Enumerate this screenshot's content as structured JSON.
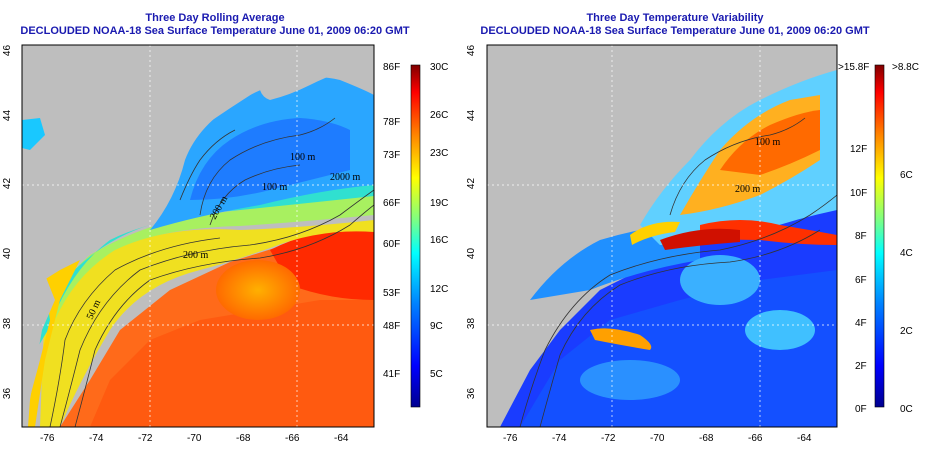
{
  "colors": {
    "title": "#1a1ab0",
    "land": "#bebebe",
    "colormap": [
      "#00008f",
      "#0000ff",
      "#0080ff",
      "#00ffff",
      "#80ff80",
      "#ffff00",
      "#ff8000",
      "#ff0000",
      "#800000"
    ]
  },
  "left_panel": {
    "title_line1": "Three Day Rolling Average",
    "title_line2": "DECLOUDED NOAA-18 Sea Surface Temperature June 01, 2009 06:20 GMT",
    "x_ticks": [
      "-76",
      "-74",
      "-72",
      "-70",
      "-68",
      "-66",
      "-64"
    ],
    "y_ticks": [
      "36",
      "38",
      "40",
      "42",
      "44",
      "46"
    ],
    "contour_labels": [
      "50 m",
      "100 m",
      "100 m",
      "200 m",
      "200 m",
      "2000 m"
    ],
    "colorbar_f": [
      "86F",
      "78F",
      "73F",
      "66F",
      "60F",
      "53F",
      "48F",
      "41F"
    ],
    "colorbar_c": [
      "30C",
      "26C",
      "23C",
      "19C",
      "16C",
      "12C",
      "9C",
      "5C"
    ]
  },
  "right_panel": {
    "title_line1": "Three Day Temperature Variability",
    "title_line2": "DECLOUDED NOAA-18 Sea Surface Temperature June 01, 2009 06:20 GMT",
    "x_ticks": [
      "-76",
      "-74",
      "-72",
      "-70",
      "-68",
      "-66",
      "-64"
    ],
    "y_ticks": [
      "36",
      "38",
      "40",
      "42",
      "44",
      "46"
    ],
    "contour_labels": [
      "100 m",
      "200 m"
    ],
    "colorbar_f": [
      ">15.8F",
      "12F",
      "10F",
      "8F",
      "6F",
      "4F",
      "2F",
      "0F"
    ],
    "colorbar_c": [
      ">8.8C",
      "6C",
      "4C",
      "2C",
      "0C"
    ]
  }
}
